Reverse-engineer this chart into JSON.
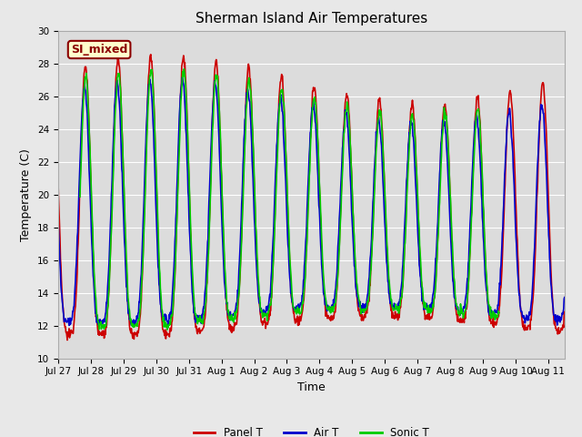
{
  "title": "Sherman Island Air Temperatures",
  "xlabel": "Time",
  "ylabel": "Temperature (C)",
  "ylim": [
    10,
    30
  ],
  "fig_bg_color": "#e8e8e8",
  "plot_bg_color": "#dcdcdc",
  "annotation_text": "SI_mixed",
  "annotation_bg": "#ffffcc",
  "annotation_border": "#8b0000",
  "annotation_text_color": "#8b0000",
  "legend_entries": [
    "Panel T",
    "Air T",
    "Sonic T"
  ],
  "line_colors": [
    "#cc0000",
    "#0000cc",
    "#00cc00"
  ],
  "x_tick_labels": [
    "Jul 27",
    "Jul 28",
    "Jul 29",
    "Jul 30",
    "Jul 31",
    "Aug 1",
    "Aug 2",
    "Aug 3",
    "Aug 4",
    "Aug 5",
    "Aug 6",
    "Aug 7",
    "Aug 8",
    "Aug 9",
    "Aug 10",
    "Aug 11"
  ],
  "num_days": 15.5,
  "title_fontsize": 11,
  "axis_label_fontsize": 9,
  "tick_fontsize": 7.5,
  "line_width": 1.2,
  "yticks": [
    10,
    12,
    14,
    16,
    18,
    20,
    22,
    24,
    26,
    28,
    30
  ],
  "grid_color": "#ffffff",
  "spine_color": "#aaaaaa"
}
